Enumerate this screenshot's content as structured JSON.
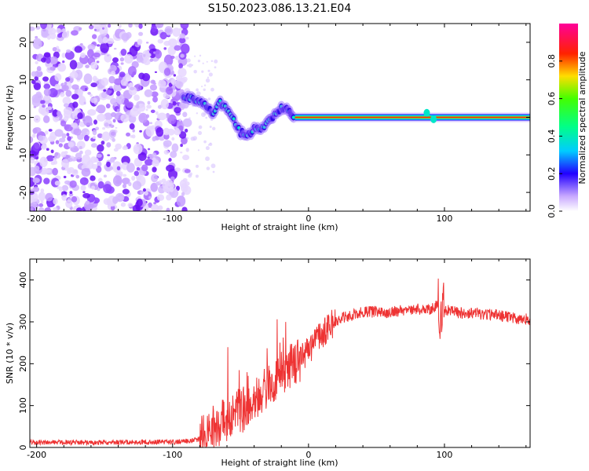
{
  "chart_data": [
    {
      "type": "heatmap",
      "title": "S150.2023.086.13.21.E04",
      "xlabel": "Height of straight line (km)",
      "ylabel": "Frequency (Hz)",
      "xlim": [
        -205,
        163
      ],
      "ylim": [
        -25,
        25
      ],
      "xticks": [
        "-200",
        "-100",
        "0",
        "100"
      ],
      "yticks": [
        "20",
        "10",
        "0",
        "-10",
        "-20"
      ],
      "noise_region_x": [
        -205,
        -89
      ],
      "signal_track": [
        {
          "x": -92,
          "y": 5.5
        },
        {
          "x": -85,
          "y": 5
        },
        {
          "x": -80,
          "y": 4.5
        },
        {
          "x": -75,
          "y": 3
        },
        {
          "x": -70,
          "y": 0.5
        },
        {
          "x": -65,
          "y": 4
        },
        {
          "x": -60,
          "y": 2
        },
        {
          "x": -55,
          "y": -1
        },
        {
          "x": -50,
          "y": -4
        },
        {
          "x": -45,
          "y": -5
        },
        {
          "x": -40,
          "y": -3
        },
        {
          "x": -35,
          "y": -3.5
        },
        {
          "x": -30,
          "y": -1
        },
        {
          "x": -25,
          "y": 0.5
        },
        {
          "x": -20,
          "y": 2.5
        },
        {
          "x": -16,
          "y": 3
        },
        {
          "x": -13,
          "y": 1
        },
        {
          "x": -10,
          "y": 0
        },
        {
          "x": 0,
          "y": 0
        },
        {
          "x": 20,
          "y": 0
        },
        {
          "x": 40,
          "y": 0
        },
        {
          "x": 60,
          "y": 0
        },
        {
          "x": 80,
          "y": 0
        },
        {
          "x": 87,
          "y": 1
        },
        {
          "x": 92,
          "y": 0
        },
        {
          "x": 110,
          "y": 0
        },
        {
          "x": 130,
          "y": 0
        },
        {
          "x": 163,
          "y": 0
        }
      ],
      "colorbar": {
        "label": "Normalized spectral amplitude",
        "ticks": [
          "0.0",
          "0.2",
          "0.4",
          "0.6",
          "0.8"
        ],
        "range": [
          0,
          1
        ]
      }
    },
    {
      "type": "line",
      "xlabel": "Height of straight line (km)",
      "ylabel": "SNR (10 * v/v)",
      "xlim": [
        -205,
        163
      ],
      "ylim": [
        0,
        450
      ],
      "xticks": [
        "-200",
        "-100",
        "0",
        "100"
      ],
      "yticks": [
        "400",
        "300",
        "200",
        "100",
        "0"
      ],
      "series": [
        {
          "name": "SNR",
          "color": "#ee3333",
          "x": [
            -205,
            -180,
            -150,
            -120,
            -100,
            -90,
            -80,
            -75,
            -70,
            -65,
            -60,
            -55,
            -50,
            -45,
            -40,
            -35,
            -30,
            -25,
            -20,
            -15,
            -10,
            -5,
            0,
            5,
            10,
            15,
            20,
            25,
            30,
            40,
            50,
            60,
            70,
            80,
            90,
            95,
            97,
            100,
            105,
            110,
            120,
            130,
            140,
            150,
            163
          ],
          "y": [
            12,
            12,
            12,
            13,
            13,
            15,
            20,
            40,
            45,
            55,
            70,
            80,
            85,
            95,
            110,
            130,
            150,
            165,
            180,
            190,
            200,
            215,
            230,
            250,
            270,
            290,
            300,
            310,
            315,
            322,
            325,
            322,
            328,
            330,
            330,
            345,
            240,
            330,
            325,
            322,
            320,
            318,
            315,
            310,
            305
          ]
        }
      ]
    }
  ]
}
